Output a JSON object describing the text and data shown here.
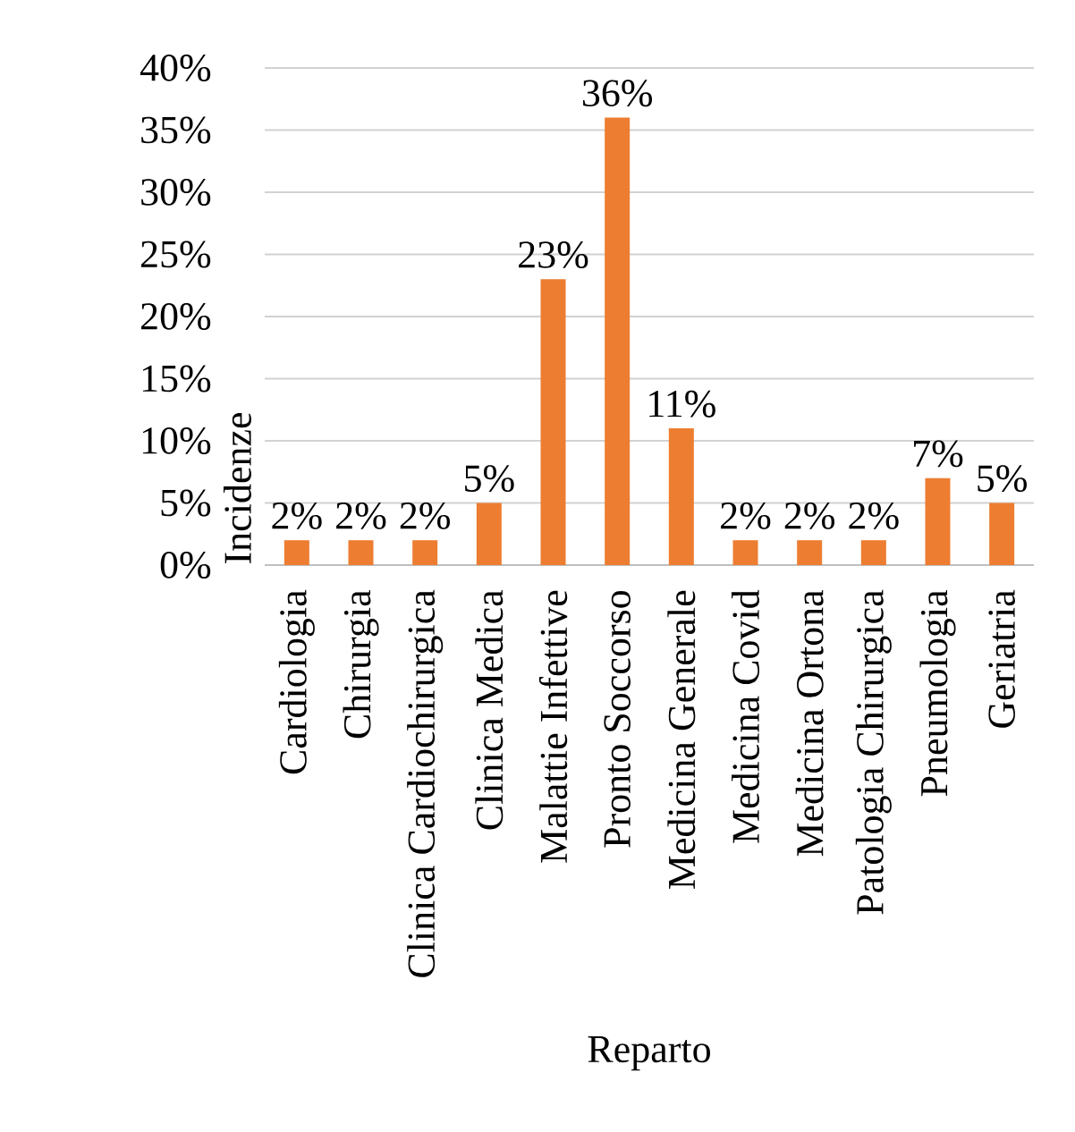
{
  "chart_data": {
    "type": "bar",
    "xlabel": "Reparto",
    "ylabel": "Incidenze",
    "categories": [
      "Cardiologia",
      "Chirurgia",
      "Clinica Cardiochirurgica",
      "Clinica Medica",
      "Malattie Infettive",
      "Pronto Soccorso",
      "Medicina Generale",
      "Medicina Covid",
      "Medicina Ortona",
      "Patologia  Chirurgica",
      "Pneumologia",
      "Geriatria"
    ],
    "values": [
      2,
      2,
      2,
      5,
      23,
      36,
      11,
      2,
      2,
      2,
      7,
      5
    ],
    "value_labels": [
      "2%",
      "2%",
      "2%",
      "5%",
      "23%",
      "36%",
      "11%",
      "2%",
      "2%",
      "2%",
      "7%",
      "5%"
    ],
    "color": "#ed7d31",
    "ylim": [
      0,
      40
    ],
    "yticks": [
      {
        "value": 0,
        "label": "0%"
      },
      {
        "value": 5,
        "label": "5%"
      },
      {
        "value": 10,
        "label": "10%"
      },
      {
        "value": 15,
        "label": "15%"
      },
      {
        "value": 20,
        "label": "20%"
      },
      {
        "value": 25,
        "label": "25%"
      },
      {
        "value": 30,
        "label": "30%"
      },
      {
        "value": 35,
        "label": "35%"
      },
      {
        "value": 40,
        "label": "40%"
      }
    ],
    "grid": "y"
  }
}
